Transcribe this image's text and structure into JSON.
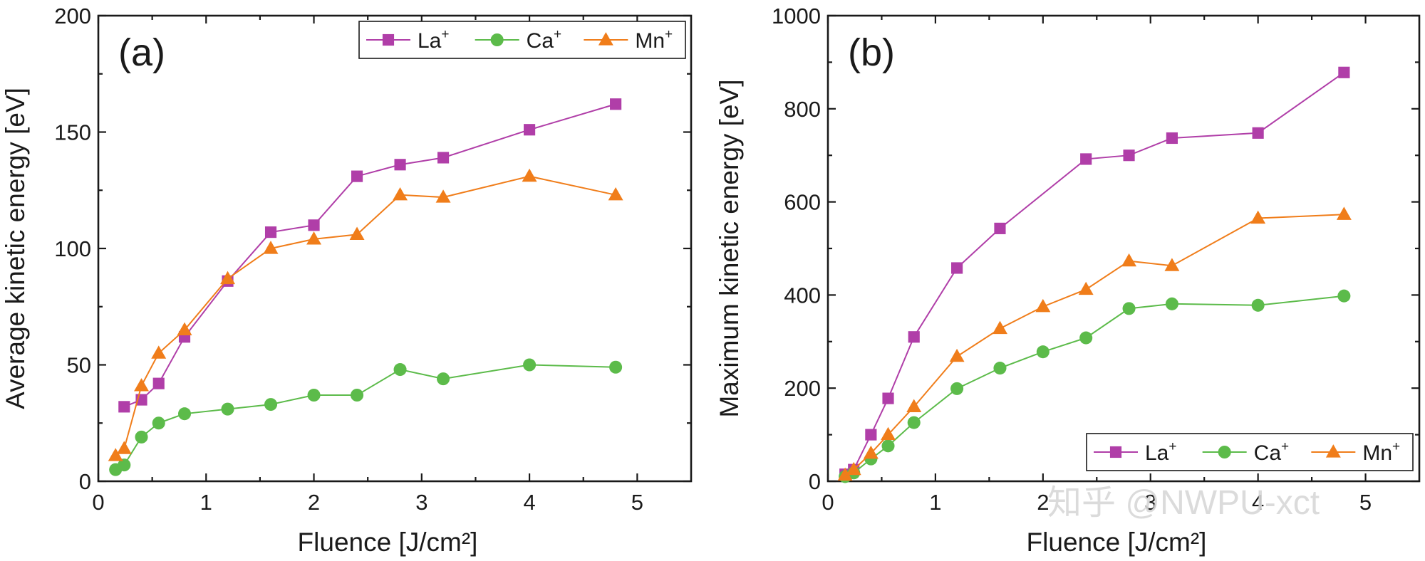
{
  "colors": {
    "La": "#b03ea8",
    "Ca": "#5cbb4a",
    "Mn": "#f07d1a",
    "axis": "#1a1a1a"
  },
  "watermark": "知乎 @NWPU-xct",
  "chart_data": [
    {
      "type": "line",
      "panel_label": "(a)",
      "title": "",
      "xlabel": "Fluence [J/cm²]",
      "ylabel": "Average kinetic energy [eV]",
      "xlim": [
        0,
        5.5
      ],
      "ylim": [
        0,
        200
      ],
      "xticks": [
        0,
        1,
        2,
        3,
        4,
        5
      ],
      "yticks": [
        0,
        50,
        100,
        150,
        200
      ],
      "legend_position": "top-right",
      "series": [
        {
          "name": "La",
          "label": "La",
          "superscript": "+",
          "marker": "square",
          "color_key": "La",
          "x": [
            0.24,
            0.4,
            0.56,
            0.8,
            1.2,
            1.6,
            2.0,
            2.4,
            2.8,
            3.2,
            4.0,
            4.8
          ],
          "y": [
            32,
            35,
            42,
            62,
            86,
            107,
            110,
            131,
            136,
            139,
            151,
            162
          ]
        },
        {
          "name": "Ca",
          "label": "Ca",
          "superscript": "+",
          "marker": "circle",
          "color_key": "Ca",
          "x": [
            0.16,
            0.24,
            0.4,
            0.56,
            0.8,
            1.2,
            1.6,
            2.0,
            2.4,
            2.8,
            3.2,
            4.0,
            4.8
          ],
          "y": [
            5,
            7,
            19,
            25,
            29,
            31,
            33,
            37,
            37,
            48,
            44,
            50,
            49
          ]
        },
        {
          "name": "Mn",
          "label": "Mn",
          "superscript": "+",
          "marker": "triangle",
          "color_key": "Mn",
          "x": [
            0.16,
            0.24,
            0.4,
            0.56,
            0.8,
            1.2,
            1.6,
            2.0,
            2.4,
            2.8,
            3.2,
            4.0,
            4.8
          ],
          "y": [
            11,
            14,
            41,
            55,
            65,
            87,
            100,
            104,
            106,
            123,
            122,
            131,
            123
          ]
        }
      ]
    },
    {
      "type": "line",
      "panel_label": "(b)",
      "title": "",
      "xlabel": "Fluence [J/cm²]",
      "ylabel": "Maximum kinetic energy [eV]",
      "xlim": [
        0,
        5.5
      ],
      "ylim": [
        0,
        1000
      ],
      "xticks": [
        0,
        1,
        2,
        3,
        4,
        5
      ],
      "yticks": [
        0,
        200,
        400,
        600,
        800,
        1000
      ],
      "legend_position": "bottom-right",
      "series": [
        {
          "name": "La",
          "label": "La",
          "superscript": "+",
          "marker": "square",
          "color_key": "La",
          "x": [
            0.16,
            0.24,
            0.4,
            0.56,
            0.8,
            1.2,
            1.6,
            2.4,
            2.8,
            3.2,
            4.0,
            4.8
          ],
          "y": [
            15,
            25,
            100,
            178,
            310,
            458,
            543,
            692,
            700,
            737,
            748,
            878
          ]
        },
        {
          "name": "Ca",
          "label": "Ca",
          "superscript": "+",
          "marker": "circle",
          "color_key": "Ca",
          "x": [
            0.16,
            0.24,
            0.4,
            0.56,
            0.8,
            1.2,
            1.6,
            2.0,
            2.4,
            2.8,
            3.2,
            4.0,
            4.8
          ],
          "y": [
            10,
            18,
            48,
            76,
            126,
            199,
            243,
            278,
            308,
            371,
            381,
            378,
            398
          ]
        },
        {
          "name": "Mn",
          "label": "Mn",
          "superscript": "+",
          "marker": "triangle",
          "color_key": "Mn",
          "x": [
            0.16,
            0.24,
            0.4,
            0.56,
            0.8,
            1.2,
            1.6,
            2.0,
            2.4,
            2.8,
            3.2,
            4.0,
            4.8
          ],
          "y": [
            13,
            25,
            60,
            100,
            160,
            268,
            328,
            375,
            412,
            473,
            463,
            565,
            573
          ]
        }
      ]
    }
  ]
}
